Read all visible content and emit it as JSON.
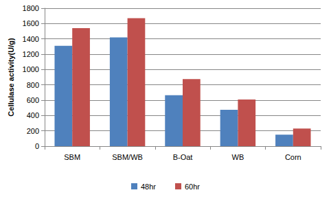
{
  "chart_data": {
    "type": "bar",
    "y_label": "Cellulase activity(U/g)",
    "categories": [
      "SBM",
      "SBM/WB",
      "B-Oat",
      "WB",
      "Corn"
    ],
    "series": [
      {
        "name": "48hr",
        "color": "#4f81bd",
        "values": [
          1310,
          1420,
          665,
          475,
          150
        ]
      },
      {
        "name": "60hr",
        "color": "#c0504d",
        "values": [
          1540,
          1670,
          875,
          610,
          230
        ]
      }
    ],
    "ylim": [
      0,
      1800
    ],
    "yticks": [
      0,
      200,
      400,
      600,
      800,
      1000,
      1200,
      1400,
      1600,
      1800
    ],
    "grid": true,
    "legend": "bottom"
  }
}
